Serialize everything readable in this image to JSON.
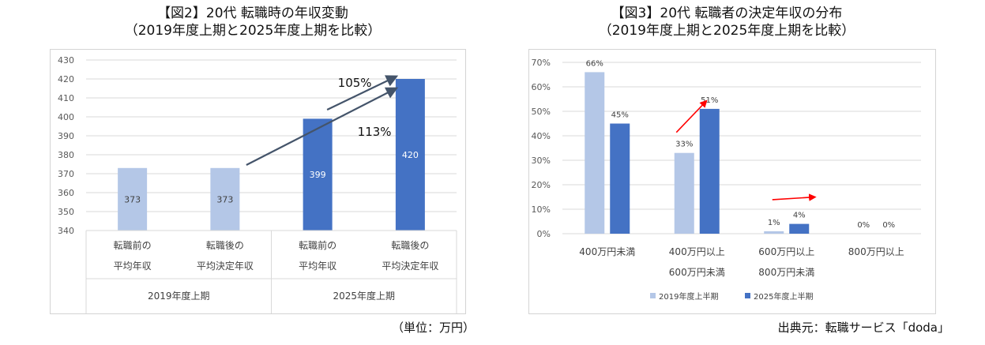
{
  "charts": {
    "left": {
      "title_line1": "【図2】20代 転職時の年収変動",
      "title_line2": "（2019年度上期と2025年度上期を比較）",
      "note": "（単位：万円）"
    },
    "right": {
      "title_line1": "【図3】20代 転職者の決定年収の分布",
      "title_line2": "（2019年度上期と2025年度上期を比較）",
      "note": "出典元：転職サービス「doda」"
    }
  },
  "chart_data": [
    {
      "type": "bar",
      "title": "【図2】20代 転職時の年収変動（2019年度上期と2025年度上期を比較）",
      "categories": [
        {
          "line1": "転職前の",
          "line2": "平均年収",
          "group": "2019年度上期"
        },
        {
          "line1": "転職後の",
          "line2": "平均決定年収",
          "group": "2019年度上期"
        },
        {
          "line1": "転職前の",
          "line2": "平均年収",
          "group": "2025年度上期"
        },
        {
          "line1": "転職後の",
          "line2": "平均決定年収",
          "group": "2025年度上期"
        }
      ],
      "groups": [
        "2019年度上期",
        "2025年度上期"
      ],
      "values": [
        373,
        373,
        399,
        420
      ],
      "data_labels": [
        "373",
        "373",
        "399",
        "420"
      ],
      "bar_colors": [
        "#b4c7e7",
        "#b4c7e7",
        "#4472c4",
        "#4472c4"
      ],
      "ylim": [
        340,
        430
      ],
      "yticks": [
        340,
        350,
        360,
        370,
        380,
        390,
        400,
        410,
        420,
        430
      ],
      "grid": true,
      "annotations": [
        {
          "text": "105%",
          "from_index": 2,
          "to_index": 3
        },
        {
          "text": "113%",
          "from_index": 1,
          "to_index": 3
        }
      ],
      "unit": "（単位：万円）"
    },
    {
      "type": "bar",
      "title": "【図3】20代 転職者の決定年収の分布（2019年度上期と2025年度上期を比較）",
      "categories": [
        {
          "line1": "400万円未満",
          "line2": ""
        },
        {
          "line1": "400万円以上",
          "line2": "600万円未満"
        },
        {
          "line1": "600万円以上",
          "line2": "800万円未満"
        },
        {
          "line1": "800万円以上",
          "line2": ""
        }
      ],
      "series": [
        {
          "name": "2019年度上半期",
          "values": [
            66,
            33,
            1,
            0
          ],
          "labels": [
            "66%",
            "33%",
            "1%",
            "0%"
          ],
          "color": "#b4c7e7"
        },
        {
          "name": "2025年度上半期",
          "values": [
            45,
            51,
            4,
            0
          ],
          "labels": [
            "45%",
            "51%",
            "4%",
            "0%"
          ],
          "color": "#4472c4"
        }
      ],
      "ylim": [
        0,
        70
      ],
      "yticks": [
        0,
        10,
        20,
        30,
        40,
        50,
        60,
        70
      ],
      "ytick_labels": [
        "0%",
        "10%",
        "20%",
        "30%",
        "40%",
        "50%",
        "60%",
        "70%"
      ],
      "grid": true,
      "legend_position": "bottom",
      "annotation_color": "#ff0000",
      "source": "出典元：転職サービス「doda」"
    }
  ]
}
